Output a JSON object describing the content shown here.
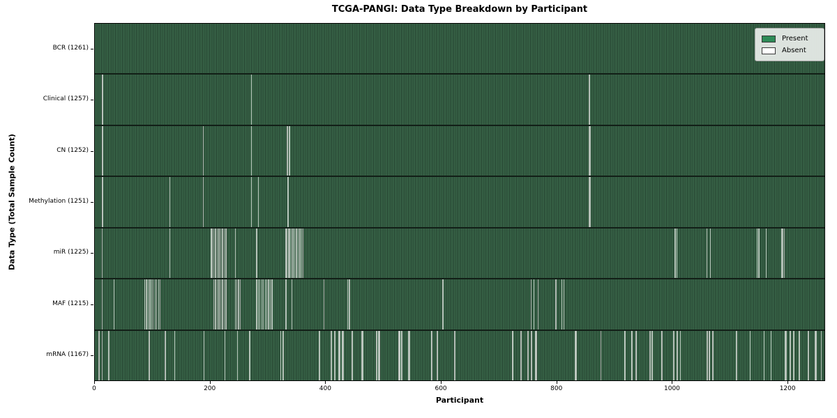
{
  "title": "TCGA-PANGI: Data Type Breakdown by Participant",
  "legend": {
    "present_label": "Present",
    "absent_label": "Absent",
    "present_color": "#2e8b57",
    "absent_color": "#ffffff"
  },
  "colors": {
    "bar_fill": "#2e8b57",
    "bar_edge": "#1a2e21",
    "stripe_light": "#3c6b4d",
    "stripe_dark": "#223d2c",
    "absent_line": "#c6cec7",
    "spine": "#000000",
    "background": "#ffffff"
  },
  "chart_data": {
    "type": "heatmap",
    "title": "TCGA-PANGI: Data Type Breakdown by Participant",
    "xlabel": "Participant",
    "ylabel": "Data Type (Total Sample Count)",
    "x_ticks": [
      0,
      200,
      400,
      600,
      800,
      1000,
      1200
    ],
    "x_axis_max": 1265,
    "n_participants": 1261,
    "legend_position": "upper right",
    "grid": false,
    "rows": [
      {
        "name": "BCR",
        "label": "BCR (1261)",
        "present_count": 1261,
        "absent_participants": []
      },
      {
        "name": "Clinical",
        "label": "Clinical (1257)",
        "present_count": 1257,
        "absent_participants": [
          11,
          12,
          270,
          856
        ]
      },
      {
        "name": "CN",
        "label": "CN (1252)",
        "present_count": 1252,
        "absent_participants": [
          11,
          12,
          187,
          270,
          332,
          333,
          336,
          856,
          858
        ]
      },
      {
        "name": "Methylation",
        "label": "Methylation (1251)",
        "present_count": 1251,
        "absent_participants": [
          11,
          12,
          129,
          187,
          270,
          282,
          333,
          334,
          856,
          858
        ]
      },
      {
        "name": "miR",
        "label": "miR (1225)",
        "present_count": 1225,
        "absent_participants": [
          11,
          129,
          200,
          202,
          205,
          208,
          211,
          214,
          217,
          220,
          223,
          226,
          242,
          279,
          330,
          332,
          334,
          336,
          339,
          342,
          345,
          348,
          351,
          354,
          357,
          360,
          1005,
          1008,
          1060,
          1066,
          1147,
          1150,
          1163,
          1190,
          1192,
          1194
        ]
      },
      {
        "name": "MAF",
        "label": "MAF (1215)",
        "present_count": 1215,
        "absent_participants": [
          11,
          32,
          85,
          88,
          91,
          94,
          97,
          100,
          103,
          106,
          109,
          112,
          205,
          208,
          211,
          214,
          217,
          220,
          223,
          226,
          242,
          245,
          248,
          251,
          279,
          282,
          285,
          288,
          291,
          294,
          297,
          300,
          303,
          306,
          330,
          340,
          396,
          437,
          440,
          602,
          755,
          760,
          767,
          798,
          808,
          812
        ]
      },
      {
        "name": "mRNA",
        "label": "mRNA (1167)",
        "present_count": 1167,
        "absent_participants": [
          6,
          11,
          23,
          93,
          121,
          137,
          188,
          224,
          246,
          267,
          321,
          325,
          388,
          408,
          409,
          414,
          415,
          422,
          423,
          428,
          429,
          444,
          445,
          462,
          463,
          487,
          488,
          491,
          492,
          525,
          526,
          527,
          528,
          530,
          531,
          543,
          544,
          582,
          583,
          592,
          593,
          622,
          623,
          723,
          724,
          737,
          738,
          749,
          750,
          755,
          756,
          763,
          764,
          832,
          833,
          876,
          917,
          918,
          929,
          930,
          937,
          938,
          961,
          962,
          965,
          981,
          982,
          1002,
          1003,
          1008,
          1009,
          1014,
          1060,
          1061,
          1064,
          1065,
          1070,
          1071,
          1111,
          1112,
          1135,
          1159,
          1171,
          1196,
          1197,
          1204,
          1205,
          1210,
          1211,
          1220,
          1236,
          1248,
          1249,
          1258
        ]
      }
    ]
  }
}
